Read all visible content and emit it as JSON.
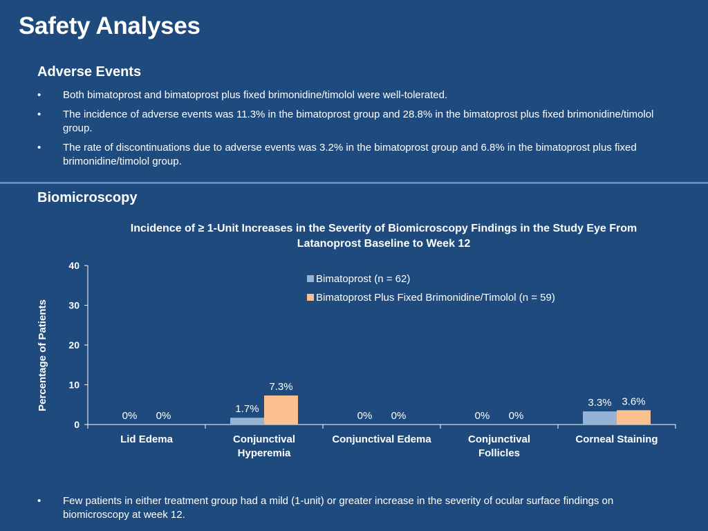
{
  "slide": {
    "title": "Safety Analyses"
  },
  "adverse_events": {
    "heading": "Adverse Events",
    "bullet_symbol": "•",
    "bullets": [
      "Both bimatoprost and bimatoprost plus fixed brimonidine/timolol were well-tolerated.",
      "The incidence of adverse events was 11.3% in the bimatoprost group and 28.8% in the bimatoprost plus fixed brimonidine/timolol group.",
      "The rate of discontinuations due to adverse events was 3.2% in the bimatoprost group and 6.8% in the bimatoprost plus fixed brimonidine/timolol group."
    ]
  },
  "biomicroscopy": {
    "heading": "Biomicroscopy",
    "footer_bullet": "Few patients in either treatment group had a mild (1-unit) or greater increase in the severity of ocular surface findings on biomicroscopy at week 12."
  },
  "colors": {
    "background": "#1f4a7d",
    "divider": "#5a8fcf",
    "series_bimatoprost": "#95b3d7",
    "series_combo": "#fac090"
  },
  "chart_data": {
    "type": "bar",
    "title": "Incidence of ≥ 1-Unit Increases in the Severity of Biomicroscopy Findings in the Study Eye From Latanoprost Baseline to Week 12",
    "ylabel": "Percentage of Patients",
    "xlabel": "",
    "ylim": [
      0,
      40
    ],
    "yticks": [
      0,
      10,
      20,
      30,
      40
    ],
    "categories": [
      [
        "Lid Edema"
      ],
      [
        "Conjunctival",
        "Hyperemia"
      ],
      [
        "Conjunctival Edema"
      ],
      [
        "Conjunctival",
        "Follicles"
      ],
      [
        "Corneal Staining"
      ]
    ],
    "series": [
      {
        "name": "Bimatoprost (n = 62)",
        "color": "#95b3d7",
        "values": [
          0,
          1.7,
          0,
          0,
          3.3
        ],
        "labels": [
          "0%",
          "1.7%",
          "0%",
          "0%",
          "3.3%"
        ]
      },
      {
        "name": "Bimatoprost Plus Fixed Brimonidine/Timolol (n = 59)",
        "color": "#fac090",
        "values": [
          0,
          7.3,
          0,
          0,
          3.6
        ],
        "labels": [
          "0%",
          "7.3%",
          "0%",
          "0%",
          "3.6%"
        ]
      }
    ],
    "legend_position": "top-center",
    "grid": false
  }
}
